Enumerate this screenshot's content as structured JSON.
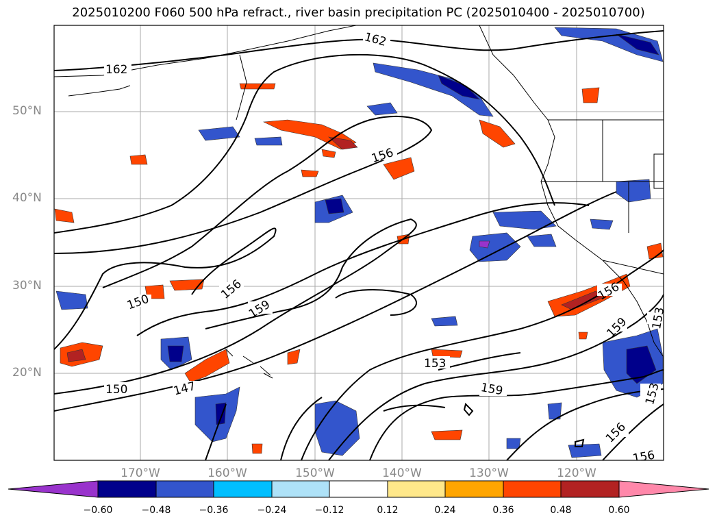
{
  "title": "2025010200 F060 500 hPa refract., river basin precipitation PC (2025010400 - 2025010700)",
  "map": {
    "lat_labels": [
      "50°N",
      "40°N",
      "30°N",
      "20°N"
    ],
    "lon_labels": [
      "170°W",
      "160°W",
      "150°W",
      "140°W",
      "130°W",
      "120°W"
    ],
    "contour_labels": [
      "162",
      "162",
      "156",
      "156",
      "159",
      "150",
      "150",
      "147",
      "153",
      "159",
      "156",
      "159",
      "153",
      "156",
      "156",
      "153"
    ]
  },
  "colorbar": {
    "colors": [
      "#9933cc",
      "#00008b",
      "#3355cc",
      "#00bfff",
      "#aee2f8",
      "#ffffff",
      "#ffe88a",
      "#ffa500",
      "#ff4500",
      "#b22222",
      "#ff88aa"
    ],
    "tick_labels": [
      "−0.60",
      "−0.48",
      "−0.36",
      "−0.24",
      "−0.12",
      "0.12",
      "0.24",
      "0.36",
      "0.48",
      "0.60"
    ]
  }
}
